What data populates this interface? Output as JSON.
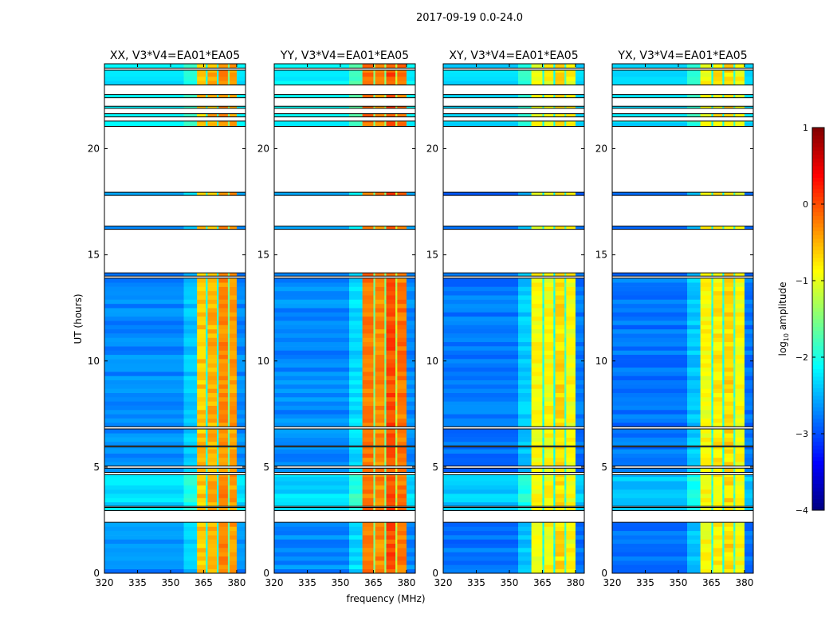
{
  "chart_data": {
    "type": "heatmap",
    "title": "2017-09-19 0.0-24.0",
    "xlabel": "frequency (MHz)",
    "ylabel": "UT (hours)",
    "xlim": [
      320,
      384
    ],
    "ylim": [
      0,
      24
    ],
    "xticks": [
      "320",
      "335",
      "350",
      "365",
      "380"
    ],
    "yticks": [
      "0",
      "5",
      "10",
      "15",
      "20"
    ],
    "colorbar": {
      "label": "log10 amplitude",
      "label_base": "log",
      "label_sub": "10",
      "label_rest": " amplitude",
      "range": [
        -4,
        1
      ],
      "ticks": [
        "1",
        "0",
        "−1",
        "−2",
        "−3",
        "−4"
      ],
      "colormap": "jet"
    },
    "time_segments_hours": [
      [
        0,
        2.4
      ],
      [
        2.95,
        3.1
      ],
      [
        3.15,
        4.65
      ],
      [
        4.75,
        4.95
      ],
      [
        5.05,
        5.95
      ],
      [
        6.0,
        6.8
      ],
      [
        6.9,
        13.9
      ],
      [
        14.0,
        14.15
      ],
      [
        16.2,
        16.35
      ],
      [
        17.8,
        17.95
      ],
      [
        21.05,
        21.3
      ],
      [
        21.5,
        21.65
      ],
      [
        21.9,
        22.0
      ],
      [
        22.4,
        22.55
      ],
      [
        23.0,
        23.7
      ],
      [
        23.8,
        24.0
      ]
    ],
    "panels": [
      {
        "title": "XX, V3*V4=EA01*EA05",
        "bands": [
          [
            320,
            356,
            -2.7
          ],
          [
            356,
            362,
            -2.4
          ],
          [
            362,
            366,
            -0.6
          ],
          [
            366,
            366.8,
            -2.0
          ],
          [
            366.8,
            371,
            -0.5
          ],
          [
            371,
            371.8,
            -2.0
          ],
          [
            371.8,
            376,
            -0.3
          ],
          [
            376,
            376.8,
            -1.6
          ],
          [
            376.8,
            380,
            -0.4
          ],
          [
            380,
            384,
            -2.7
          ]
        ]
      },
      {
        "title": "YY, V3*V4=EA01*EA05",
        "bands": [
          [
            320,
            354,
            -2.7
          ],
          [
            354,
            360,
            -2.3
          ],
          [
            360,
            365,
            -0.2
          ],
          [
            365,
            365.8,
            -1.5
          ],
          [
            365.8,
            370,
            -0.3
          ],
          [
            370,
            370.8,
            -1.5
          ],
          [
            370.8,
            375,
            0.0
          ],
          [
            375,
            375.8,
            -1.2
          ],
          [
            375.8,
            380,
            -0.2
          ],
          [
            380,
            384,
            -2.7
          ]
        ]
      },
      {
        "title": "XY, V3*V4=EA01*EA05",
        "bands": [
          [
            320,
            354,
            -2.8
          ],
          [
            354,
            360,
            -2.4
          ],
          [
            360,
            365,
            -0.9
          ],
          [
            365,
            365.8,
            -2.0
          ],
          [
            365.8,
            370,
            -0.9
          ],
          [
            370,
            370.8,
            -2.0
          ],
          [
            370.8,
            375,
            -0.7
          ],
          [
            375,
            375.8,
            -1.8
          ],
          [
            375.8,
            380,
            -0.9
          ],
          [
            380,
            384,
            -2.8
          ]
        ]
      },
      {
        "title": "YX, V3*V4=EA01*EA05",
        "bands": [
          [
            320,
            354,
            -2.8
          ],
          [
            354,
            360,
            -2.4
          ],
          [
            360,
            365,
            -0.9
          ],
          [
            365,
            365.8,
            -2.0
          ],
          [
            365.8,
            370,
            -0.8
          ],
          [
            370,
            370.8,
            -2.0
          ],
          [
            370.8,
            375,
            -0.7
          ],
          [
            375,
            375.8,
            -1.8
          ],
          [
            375.8,
            380,
            -0.9
          ],
          [
            380,
            384,
            -2.8
          ]
        ]
      }
    ]
  }
}
